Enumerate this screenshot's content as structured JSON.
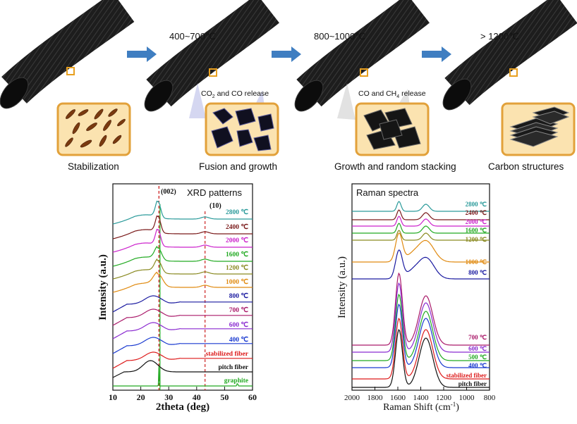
{
  "process": {
    "stages": [
      {
        "label": "Stabilization"
      },
      {
        "label": "Fusion and growth"
      },
      {
        "label": "Growth and random stacking"
      },
      {
        "label": "Carbon structures"
      }
    ],
    "temperatures": [
      "400~700℃",
      "800~1000℃",
      "> 1200℃"
    ],
    "releases": [
      {
        "prefix": "CO",
        "sub": "2",
        "suffix": " and CO release"
      },
      {
        "prefix": "CO and CH",
        "sub": "4",
        "suffix": " release"
      }
    ],
    "colors": {
      "fiber": "#1c1c1c",
      "arrow": "#3f7ec1",
      "inset_fill": "#fbe3b0",
      "inset_border": "#e2a13a",
      "marker": "#e8a020"
    }
  },
  "chart_data": [
    {
      "type": "line",
      "title": "XRD patterns",
      "xlabel": "2theta (deg)",
      "ylabel": "Intensity (a.u.)",
      "xlim": [
        10,
        60
      ],
      "xticks": [
        10,
        20,
        30,
        40,
        50,
        60
      ],
      "peak_labels": [
        "(002)",
        "(10)"
      ],
      "reference_lines": [
        26.5,
        43
      ],
      "series": [
        {
          "name": "2800 ℃",
          "color": "#2a9a9a"
        },
        {
          "name": "2400 ℃",
          "color": "#7a1a1a"
        },
        {
          "name": "2000 ℃",
          "color": "#cc22cc"
        },
        {
          "name": "1600 ℃",
          "color": "#22aa22"
        },
        {
          "name": "1200 ℃",
          "color": "#8a8a22"
        },
        {
          "name": "1000 ℃",
          "color": "#e08a10"
        },
        {
          "name": "800 ℃",
          "color": "#1a1aa0"
        },
        {
          "name": "700 ℃",
          "color": "#aa1a6a"
        },
        {
          "name": "600 ℃",
          "color": "#8a2ad0"
        },
        {
          "name": "400 ℃",
          "color": "#1a3ad0"
        },
        {
          "name": "stabilized fiber",
          "color": "#dd1a1a"
        },
        {
          "name": "pitch fiber",
          "color": "#111111"
        },
        {
          "name": "graphite",
          "color": "#22aa22"
        }
      ]
    },
    {
      "type": "line",
      "title": "Raman spectra",
      "xlabel": "Raman Shift (cm",
      "xlabel_sup": "-1",
      "xlabel_end": ")",
      "ylabel": "Intensity (a.u.)",
      "xlim": [
        2000,
        800
      ],
      "xticks": [
        2000,
        1800,
        1600,
        1400,
        1200,
        1000,
        800
      ],
      "series": [
        {
          "name": "2800 ℃",
          "color": "#2a9a9a"
        },
        {
          "name": "2400 ℃",
          "color": "#7a1a1a"
        },
        {
          "name": "2000 ℃",
          "color": "#cc22cc"
        },
        {
          "name": "1600 ℃",
          "color": "#22aa22"
        },
        {
          "name": "1200 ℃",
          "color": "#8a8a22"
        },
        {
          "name": "1000 ℃",
          "color": "#e08a10"
        },
        {
          "name": "800 ℃",
          "color": "#1a1aa0"
        },
        {
          "name": "700 ℃",
          "color": "#aa1a6a"
        },
        {
          "name": "600 ℃",
          "color": "#8a2ad0"
        },
        {
          "name": "500 ℃",
          "color": "#22aa22"
        },
        {
          "name": "400 ℃",
          "color": "#1a3ad0"
        },
        {
          "name": "stabilized fiber",
          "color": "#dd1a1a"
        },
        {
          "name": "pitch fiber",
          "color": "#111111"
        }
      ]
    }
  ]
}
